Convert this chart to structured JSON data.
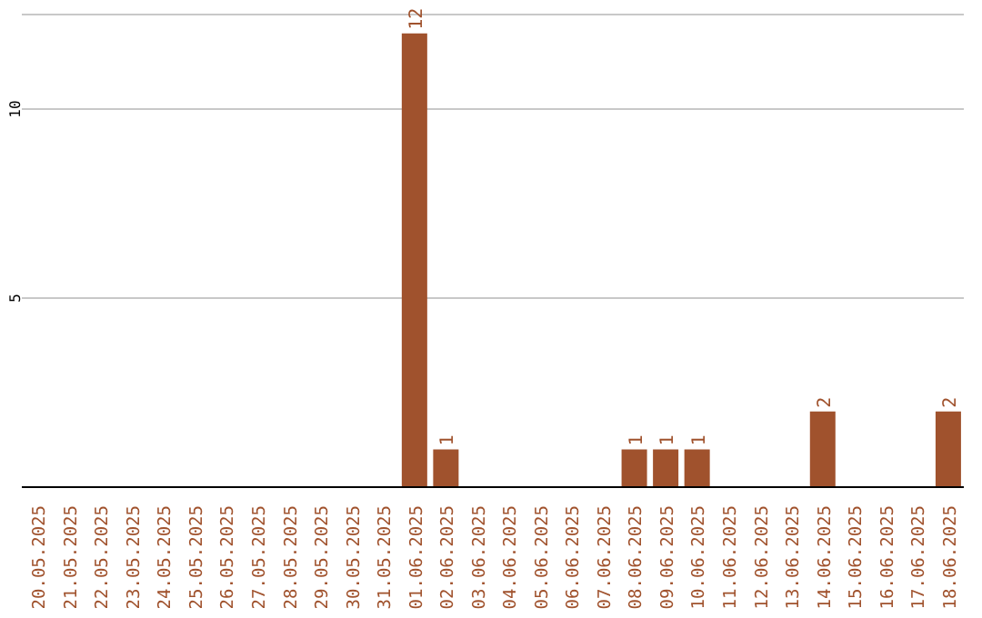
{
  "chart_data": {
    "type": "bar",
    "categories": [
      "20.05.2025",
      "21.05.2025",
      "22.05.2025",
      "23.05.2025",
      "24.05.2025",
      "25.05.2025",
      "26.05.2025",
      "27.05.2025",
      "28.05.2025",
      "29.05.2025",
      "30.05.2025",
      "31.05.2025",
      "01.06.2025",
      "02.06.2025",
      "03.06.2025",
      "04.06.2025",
      "05.06.2025",
      "06.06.2025",
      "07.06.2025",
      "08.06.2025",
      "09.06.2025",
      "10.06.2025",
      "11.06.2025",
      "12.06.2025",
      "13.06.2025",
      "14.06.2025",
      "15.06.2025",
      "16.06.2025",
      "17.06.2025",
      "18.06.2025"
    ],
    "values": [
      0,
      0,
      0,
      0,
      0,
      0,
      0,
      0,
      0,
      0,
      0,
      0,
      12,
      1,
      0,
      0,
      0,
      0,
      0,
      1,
      1,
      1,
      0,
      0,
      0,
      2,
      0,
      0,
      0,
      2
    ],
    "value_labels": [
      null,
      null,
      null,
      null,
      null,
      null,
      null,
      null,
      null,
      null,
      null,
      null,
      "12",
      "1",
      null,
      null,
      null,
      null,
      null,
      "1",
      "1",
      "1",
      null,
      null,
      null,
      "2",
      null,
      null,
      null,
      "2"
    ],
    "color": "#a0522d",
    "ylim": [
      0,
      12.5
    ],
    "yticks": [
      5,
      10
    ],
    "grid": "y"
  }
}
